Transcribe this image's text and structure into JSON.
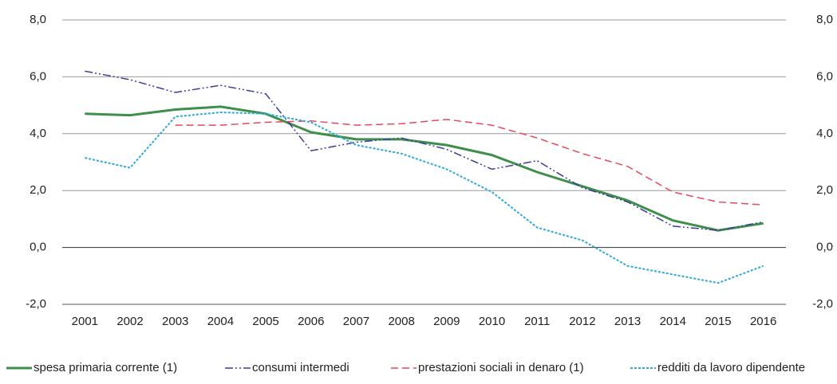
{
  "chart_data": {
    "type": "line",
    "categories": [
      "2001",
      "2002",
      "2003",
      "2004",
      "2005",
      "2006",
      "2007",
      "2008",
      "2009",
      "2010",
      "2011",
      "2012",
      "2013",
      "2014",
      "2015",
      "2016"
    ],
    "series": [
      {
        "name": "spesa primaria corrente (1)",
        "color": "#3d8f4a",
        "values": [
          4.7,
          4.65,
          4.85,
          4.95,
          4.7,
          4.05,
          3.8,
          3.8,
          3.6,
          3.25,
          2.65,
          2.15,
          1.65,
          0.95,
          0.6,
          0.85
        ]
      },
      {
        "name": "consumi intermedi",
        "color": "#3b3b9c",
        "values": [
          6.2,
          5.9,
          5.45,
          5.7,
          5.4,
          3.4,
          3.7,
          3.85,
          3.45,
          2.75,
          3.05,
          2.1,
          1.6,
          0.75,
          0.6,
          0.9
        ]
      },
      {
        "name": "prestazioni sociali in denaro (1)",
        "color": "#e6485c",
        "values": [
          null,
          null,
          4.3,
          4.3,
          4.4,
          4.45,
          4.3,
          4.35,
          4.5,
          4.3,
          3.85,
          3.3,
          2.85,
          1.95,
          1.6,
          1.5
        ]
      },
      {
        "name": "redditi da lavoro dipendente",
        "color": "#2fa8dc",
        "values": [
          3.15,
          2.8,
          4.6,
          4.75,
          4.7,
          4.4,
          3.6,
          3.3,
          2.75,
          1.95,
          0.7,
          0.25,
          -0.65,
          -0.95,
          -1.25,
          -0.65
        ]
      }
    ],
    "ylim": [
      -2,
      8
    ],
    "yticks": [
      {
        "value": -2,
        "label": "-2,0"
      },
      {
        "value": 0,
        "label": "0,0"
      },
      {
        "value": 2,
        "label": "2,0"
      },
      {
        "value": 4,
        "label": "4,0"
      },
      {
        "value": 6,
        "label": "6,0"
      },
      {
        "value": 8,
        "label": "8,0"
      }
    ],
    "grid": true
  }
}
